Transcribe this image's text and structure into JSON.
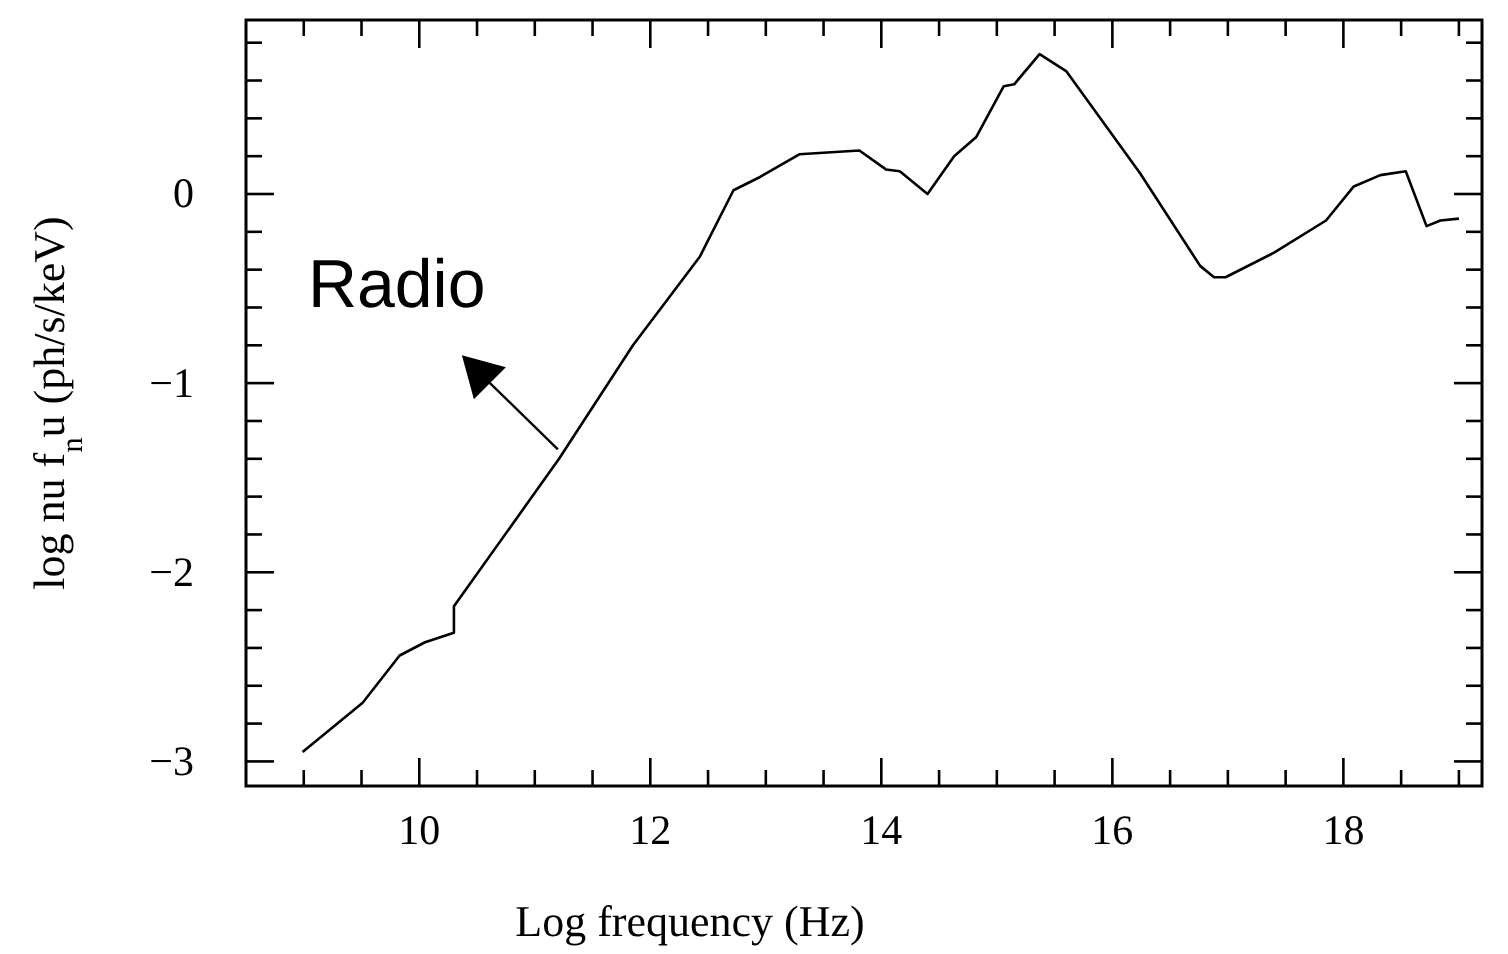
{
  "chart_data": {
    "type": "line",
    "xlabel": "Log frequency (Hz)",
    "ylabel": "log nu f$_{n}$u (ph/s/keV)",
    "xlim": [
      8.5,
      19.2
    ],
    "ylim": [
      -3.13,
      0.92
    ],
    "xticks": [
      {
        "value": 9,
        "label": null
      },
      {
        "value": 9.5,
        "label": null
      },
      10,
      {
        "value": 10.5,
        "label": null
      },
      {
        "value": 11,
        "label": null
      },
      {
        "value": 11.5,
        "label": null
      },
      12,
      {
        "value": 12.5,
        "label": null
      },
      {
        "value": 13,
        "label": null
      },
      {
        "value": 13.5,
        "label": null
      },
      14,
      {
        "value": 14.5,
        "label": null
      },
      {
        "value": 15,
        "label": null
      },
      {
        "value": 15.5,
        "label": null
      },
      16,
      {
        "value": 16.5,
        "label": null
      },
      {
        "value": 17,
        "label": null
      },
      {
        "value": 17.5,
        "label": null
      },
      18,
      {
        "value": 18.5,
        "label": null
      },
      {
        "value": 19,
        "label": null
      }
    ],
    "yticks": [
      -3,
      {
        "value": -2.8,
        "label": null
      },
      {
        "value": -2.6,
        "label": null
      },
      {
        "value": -2.4,
        "label": null
      },
      {
        "value": -2.2,
        "label": null
      },
      -2,
      {
        "value": -1.8,
        "label": null
      },
      {
        "value": -1.6,
        "label": null
      },
      {
        "value": -1.4,
        "label": null
      },
      {
        "value": -1.2,
        "label": null
      },
      -1,
      {
        "value": -0.8,
        "label": null
      },
      {
        "value": -0.6,
        "label": null
      },
      {
        "value": -0.4,
        "label": null
      },
      {
        "value": -0.2,
        "label": null
      },
      0,
      {
        "value": 0.2,
        "label": null
      },
      {
        "value": 0.4,
        "label": null
      },
      {
        "value": 0.6,
        "label": null
      },
      {
        "value": 0.8,
        "label": null
      }
    ],
    "grid": false,
    "marker": "none",
    "line_style": "solid",
    "series": [
      {
        "color": "#000000",
        "x": [
          8.99,
          9.51,
          9.83,
          10.05,
          10.3,
          10.3,
          11.21,
          11.85,
          12.43,
          12.72,
          12.95,
          13.29,
          13.81,
          14.04,
          14.16,
          14.4,
          14.63,
          14.82,
          15.06,
          15.15,
          15.37,
          15.6,
          16.24,
          16.76,
          16.88,
          16.98,
          17.4,
          17.85,
          18.09,
          18.32,
          18.54,
          18.72,
          18.84,
          19.0
        ],
        "values": [
          -2.95,
          -2.69,
          -2.44,
          -2.37,
          -2.32,
          -2.18,
          -1.4,
          -0.8,
          -0.33,
          0.02,
          0.09,
          0.21,
          0.23,
          0.13,
          0.12,
          0.0,
          0.2,
          0.3,
          0.57,
          0.58,
          0.74,
          0.65,
          0.11,
          -0.38,
          -0.44,
          -0.44,
          -0.31,
          -0.14,
          0.04,
          0.1,
          0.12,
          -0.17,
          -0.14,
          -0.13
        ]
      }
    ],
    "annotations": [
      {
        "text": "Radio",
        "x": 11.2,
        "y": -1.35
      }
    ]
  }
}
